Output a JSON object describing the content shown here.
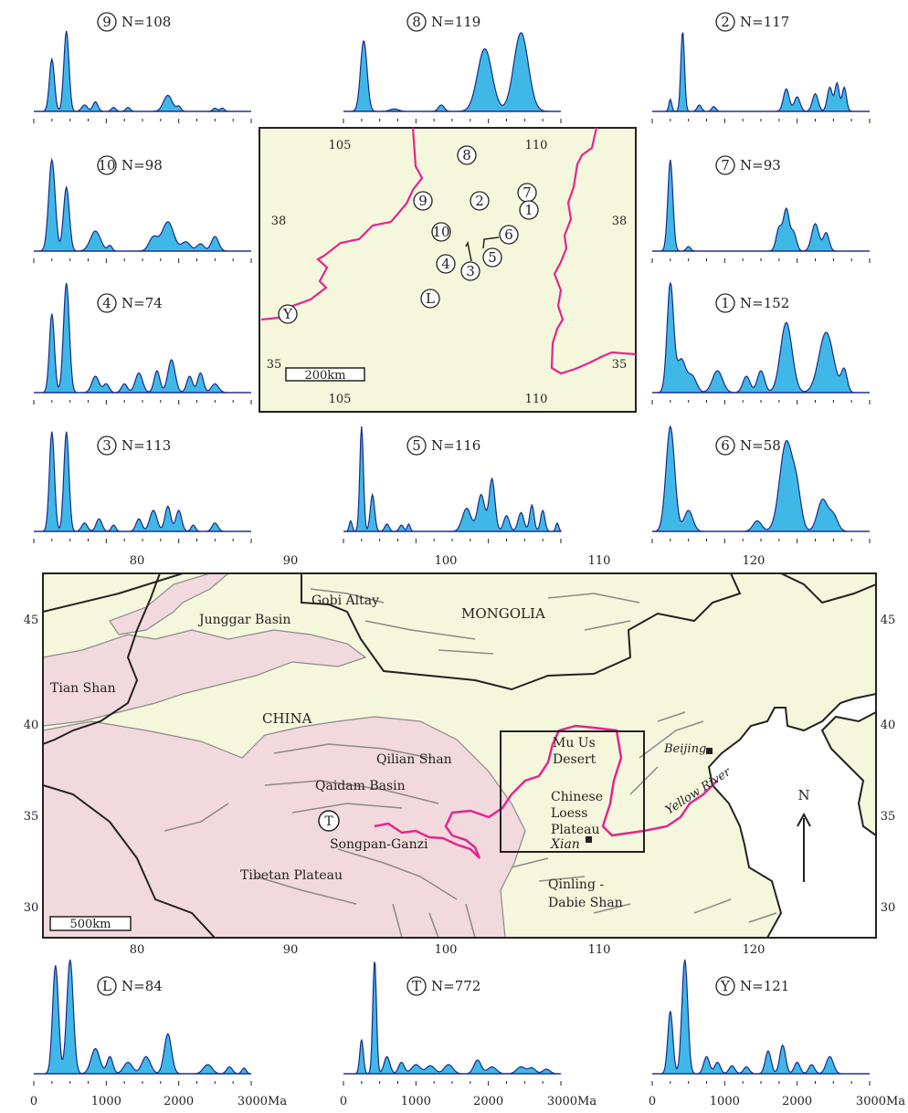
{
  "samples": [
    {
      "id": "9",
      "n": "N=108",
      "peaks": [
        [
          250,
          35,
          0.65
        ],
        [
          450,
          35,
          1.0
        ],
        [
          700,
          40,
          0.08
        ],
        [
          850,
          35,
          0.12
        ],
        [
          1100,
          30,
          0.05
        ],
        [
          1300,
          30,
          0.05
        ],
        [
          1850,
          60,
          0.2
        ],
        [
          2000,
          30,
          0.06
        ],
        [
          2500,
          30,
          0.04
        ],
        [
          2600,
          30,
          0.04
        ]
      ]
    },
    {
      "id": "8",
      "n": "N=119",
      "peaks": [
        [
          280,
          45,
          0.88
        ],
        [
          1350,
          40,
          0.08
        ],
        [
          1950,
          100,
          0.78
        ],
        [
          2450,
          100,
          0.98
        ],
        [
          700,
          60,
          0.03
        ]
      ]
    },
    {
      "id": "2",
      "n": "N=117",
      "peaks": [
        [
          250,
          20,
          0.15
        ],
        [
          420,
          25,
          1.0
        ],
        [
          650,
          30,
          0.08
        ],
        [
          850,
          30,
          0.06
        ],
        [
          1850,
          40,
          0.28
        ],
        [
          2000,
          40,
          0.18
        ],
        [
          2250,
          40,
          0.22
        ],
        [
          2450,
          35,
          0.3
        ],
        [
          2550,
          30,
          0.35
        ],
        [
          2650,
          30,
          0.3
        ]
      ]
    },
    {
      "id": "10",
      "n": "N=98",
      "peaks": [
        [
          250,
          45,
          1.0
        ],
        [
          450,
          40,
          0.7
        ],
        [
          850,
          70,
          0.22
        ],
        [
          1050,
          30,
          0.06
        ],
        [
          1650,
          60,
          0.15
        ],
        [
          1850,
          80,
          0.32
        ],
        [
          2100,
          60,
          0.1
        ],
        [
          2300,
          50,
          0.08
        ],
        [
          2500,
          50,
          0.16
        ]
      ]
    },
    {
      "id": "7",
      "n": "N=93",
      "peaks": [
        [
          250,
          35,
          1.0
        ],
        [
          500,
          30,
          0.05
        ],
        [
          1750,
          40,
          0.25
        ],
        [
          1850,
          40,
          0.45
        ],
        [
          1950,
          40,
          0.2
        ],
        [
          2250,
          50,
          0.3
        ],
        [
          2400,
          40,
          0.2
        ]
      ]
    },
    {
      "id": "4",
      "n": "N=74",
      "peaks": [
        [
          250,
          35,
          0.72
        ],
        [
          450,
          40,
          1.0
        ],
        [
          850,
          50,
          0.15
        ],
        [
          1000,
          40,
          0.08
        ],
        [
          1250,
          40,
          0.08
        ],
        [
          1450,
          50,
          0.18
        ],
        [
          1700,
          40,
          0.2
        ],
        [
          1900,
          50,
          0.3
        ],
        [
          2150,
          40,
          0.15
        ],
        [
          2300,
          40,
          0.18
        ],
        [
          2500,
          50,
          0.08
        ]
      ]
    },
    {
      "id": "1",
      "n": "N=152",
      "peaks": [
        [
          250,
          45,
          1.0
        ],
        [
          400,
          60,
          0.3
        ],
        [
          550,
          60,
          0.15
        ],
        [
          900,
          70,
          0.2
        ],
        [
          1300,
          50,
          0.15
        ],
        [
          1500,
          50,
          0.2
        ],
        [
          1850,
          80,
          0.64
        ],
        [
          2400,
          100,
          0.55
        ],
        [
          2650,
          40,
          0.2
        ]
      ]
    },
    {
      "id": "3",
      "n": "N=113",
      "peaks": [
        [
          250,
          35,
          0.95
        ],
        [
          450,
          35,
          0.95
        ],
        [
          700,
          40,
          0.08
        ],
        [
          900,
          40,
          0.12
        ],
        [
          1100,
          30,
          0.06
        ],
        [
          1450,
          40,
          0.12
        ],
        [
          1650,
          50,
          0.2
        ],
        [
          1850,
          40,
          0.24
        ],
        [
          2000,
          40,
          0.2
        ],
        [
          2200,
          30,
          0.06
        ],
        [
          2500,
          40,
          0.08
        ]
      ]
    },
    {
      "id": "5",
      "n": "N=116",
      "peaks": [
        [
          100,
          20,
          0.1
        ],
        [
          250,
          25,
          1.0
        ],
        [
          400,
          30,
          0.35
        ],
        [
          600,
          30,
          0.07
        ],
        [
          800,
          30,
          0.06
        ],
        [
          900,
          20,
          0.07
        ],
        [
          1700,
          60,
          0.22
        ],
        [
          1900,
          50,
          0.35
        ],
        [
          2050,
          40,
          0.5
        ],
        [
          2250,
          40,
          0.15
        ],
        [
          2450,
          40,
          0.18
        ],
        [
          2600,
          30,
          0.25
        ],
        [
          2750,
          30,
          0.2
        ],
        [
          2950,
          20,
          0.08
        ]
      ]
    },
    {
      "id": "6",
      "n": "N=58",
      "peaks": [
        [
          250,
          60,
          1.0
        ],
        [
          500,
          60,
          0.2
        ],
        [
          1450,
          60,
          0.1
        ],
        [
          1850,
          90,
          0.85
        ],
        [
          2000,
          60,
          0.3
        ],
        [
          2350,
          70,
          0.3
        ],
        [
          2500,
          60,
          0.15
        ]
      ]
    },
    {
      "id": "L",
      "n": "N=84",
      "peaks": [
        [
          300,
          40,
          0.95
        ],
        [
          500,
          45,
          1.0
        ],
        [
          850,
          60,
          0.22
        ],
        [
          1050,
          40,
          0.15
        ],
        [
          1300,
          60,
          0.1
        ],
        [
          1550,
          60,
          0.15
        ],
        [
          1850,
          50,
          0.35
        ],
        [
          2400,
          60,
          0.08
        ],
        [
          2700,
          40,
          0.06
        ],
        [
          2900,
          30,
          0.05
        ]
      ]
    },
    {
      "id": "T",
      "n": "N=772",
      "peaks": [
        [
          250,
          25,
          0.3
        ],
        [
          430,
          25,
          1.0
        ],
        [
          600,
          40,
          0.15
        ],
        [
          800,
          40,
          0.1
        ],
        [
          1000,
          60,
          0.08
        ],
        [
          1200,
          60,
          0.07
        ],
        [
          1450,
          60,
          0.08
        ],
        [
          1850,
          50,
          0.12
        ],
        [
          2050,
          60,
          0.06
        ],
        [
          2450,
          60,
          0.06
        ],
        [
          2600,
          50,
          0.05
        ],
        [
          2800,
          50,
          0.04
        ]
      ]
    },
    {
      "id": "Y",
      "n": "N=121",
      "peaks": [
        [
          250,
          35,
          0.55
        ],
        [
          450,
          40,
          1.0
        ],
        [
          750,
          40,
          0.15
        ],
        [
          900,
          40,
          0.1
        ],
        [
          1100,
          40,
          0.07
        ],
        [
          1300,
          40,
          0.06
        ],
        [
          1600,
          40,
          0.2
        ],
        [
          1800,
          40,
          0.25
        ],
        [
          2000,
          40,
          0.1
        ],
        [
          2200,
          40,
          0.08
        ],
        [
          2450,
          50,
          0.15
        ]
      ]
    }
  ],
  "x_axis": {
    "ticks": [
      "0",
      "1000",
      "2000",
      "3000Ma"
    ]
  },
  "inset_map": {
    "lon_ticks": [
      "105",
      "110"
    ],
    "lat_ticks": [
      "38",
      "35"
    ],
    "scale_label": "200km",
    "site_labels": [
      "8",
      "9",
      "2",
      "7",
      "1",
      "10",
      "6",
      "4",
      "5",
      "3",
      "L",
      "Y"
    ]
  },
  "main_map": {
    "lon_ticks": [
      "80",
      "90",
      "100",
      "110",
      "120"
    ],
    "lat_ticks": [
      "45",
      "40",
      "35",
      "30"
    ],
    "scale_label": "500km",
    "north_label": "N",
    "site_label": "T",
    "places": {
      "gobi": "Gobi Altay",
      "mongolia": "MONGOLIA",
      "junggar": "Junggar Basin",
      "tianshan": "Tian Shan",
      "china": "CHINA",
      "qilian": "Qilian Shan",
      "qaidam": "Qaidam Basin",
      "songpan": "Songpan-Ganzi",
      "tibet": "Tibetan Plateau",
      "muus1": "Mu Us",
      "muus2": "Desert",
      "loess1": "Chinese",
      "loess2": "Loess",
      "loess3": "Plateau",
      "xian": "Xian",
      "beijing": "Beijing",
      "yellow": "Yellow River",
      "qinling1": "Qinling -",
      "qinling2": "Dabie Shan"
    }
  },
  "colors": {
    "fill": "#3fb8e8",
    "line": "#1a2a8a",
    "map_bg": "#f5f7dc",
    "orogen": "#f2d9de",
    "river": "#e3268c"
  }
}
